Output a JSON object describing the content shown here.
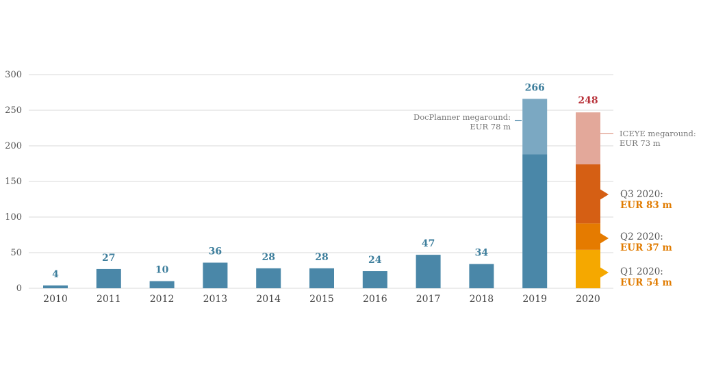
{
  "chart_data": {
    "type": "bar",
    "categories": [
      "2010",
      "2011",
      "2012",
      "2013",
      "2014",
      "2015",
      "2016",
      "2017",
      "2018",
      "2019",
      "2020"
    ],
    "values": [
      4,
      27,
      10,
      36,
      28,
      28,
      24,
      47,
      34,
      266,
      248
    ],
    "value_labels": [
      "4",
      "27",
      "10",
      "36",
      "28",
      "28",
      "24",
      "47",
      "34",
      "266",
      "248"
    ],
    "ylim": [
      0,
      300
    ],
    "yticks": [
      0,
      50,
      100,
      150,
      200,
      250,
      300
    ],
    "grid": true,
    "stacked": {
      "2019": [
        {
          "name": "",
          "value": 188,
          "color": "#4a87a8"
        },
        {
          "name": "DocPlanner megaround",
          "value": 78,
          "color": "#7ba8c2"
        }
      ],
      "2020": [
        {
          "name": "Q1 2020",
          "value": 54,
          "color": "#f5a800"
        },
        {
          "name": "Q2 2020",
          "value": 37,
          "color": "#e57b00"
        },
        {
          "name": "Q3 2020",
          "value": 83,
          "color": "#d55f14"
        },
        {
          "name": "ICEYE megaround",
          "value": 73,
          "color": "#e3a89a"
        }
      ]
    },
    "annotations": {
      "docplanner": [
        "DocPlanner megaround:",
        "EUR 78 m"
      ],
      "iceye": [
        "ICEYE megaround:",
        "EUR 73 m"
      ],
      "q3": [
        "Q3 2020:",
        "EUR 83 m"
      ],
      "q2": [
        "Q2 2020:",
        "EUR 37 m"
      ],
      "q1": [
        "Q1 2020:",
        "EUR 54 m"
      ]
    },
    "colors": {
      "bar": "#4a87a8",
      "label": "#3d7e9c",
      "label_2020": "#b8323a",
      "grid": "#d9d9d9"
    }
  }
}
